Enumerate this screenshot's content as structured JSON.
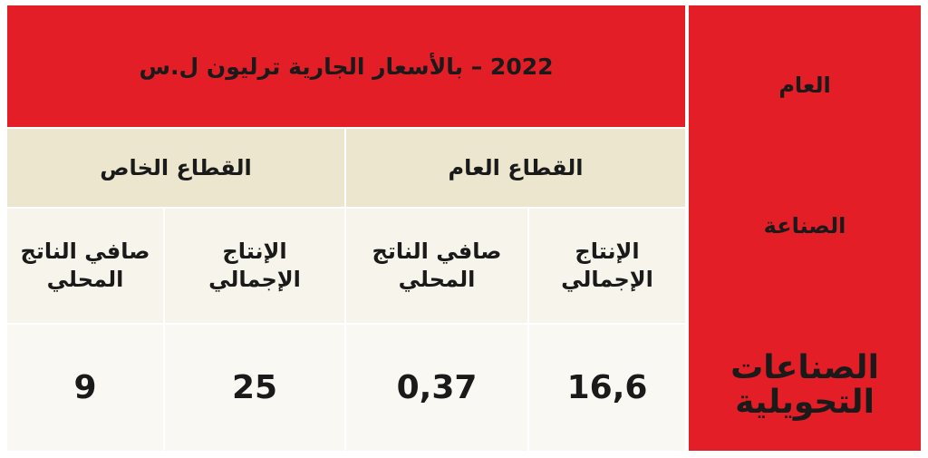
{
  "header": {
    "title": "2022 – بالأسعار الجارية ترليون ل.س"
  },
  "row_labels": [
    "العام",
    "الصناعة",
    "الصناعات التحويلية"
  ],
  "groups": [
    {
      "label": "القطاع العام",
      "columns": [
        "الإنتاج الإجمالي",
        "صافي الناتج المحلي"
      ]
    },
    {
      "label": "القطاع الخاص",
      "columns": [
        "الإنتاج الإجمالي",
        "صافي الناتج المحلي"
      ]
    }
  ],
  "rows": [
    [
      "16,6",
      "0,37",
      "25",
      "9"
    ]
  ]
}
